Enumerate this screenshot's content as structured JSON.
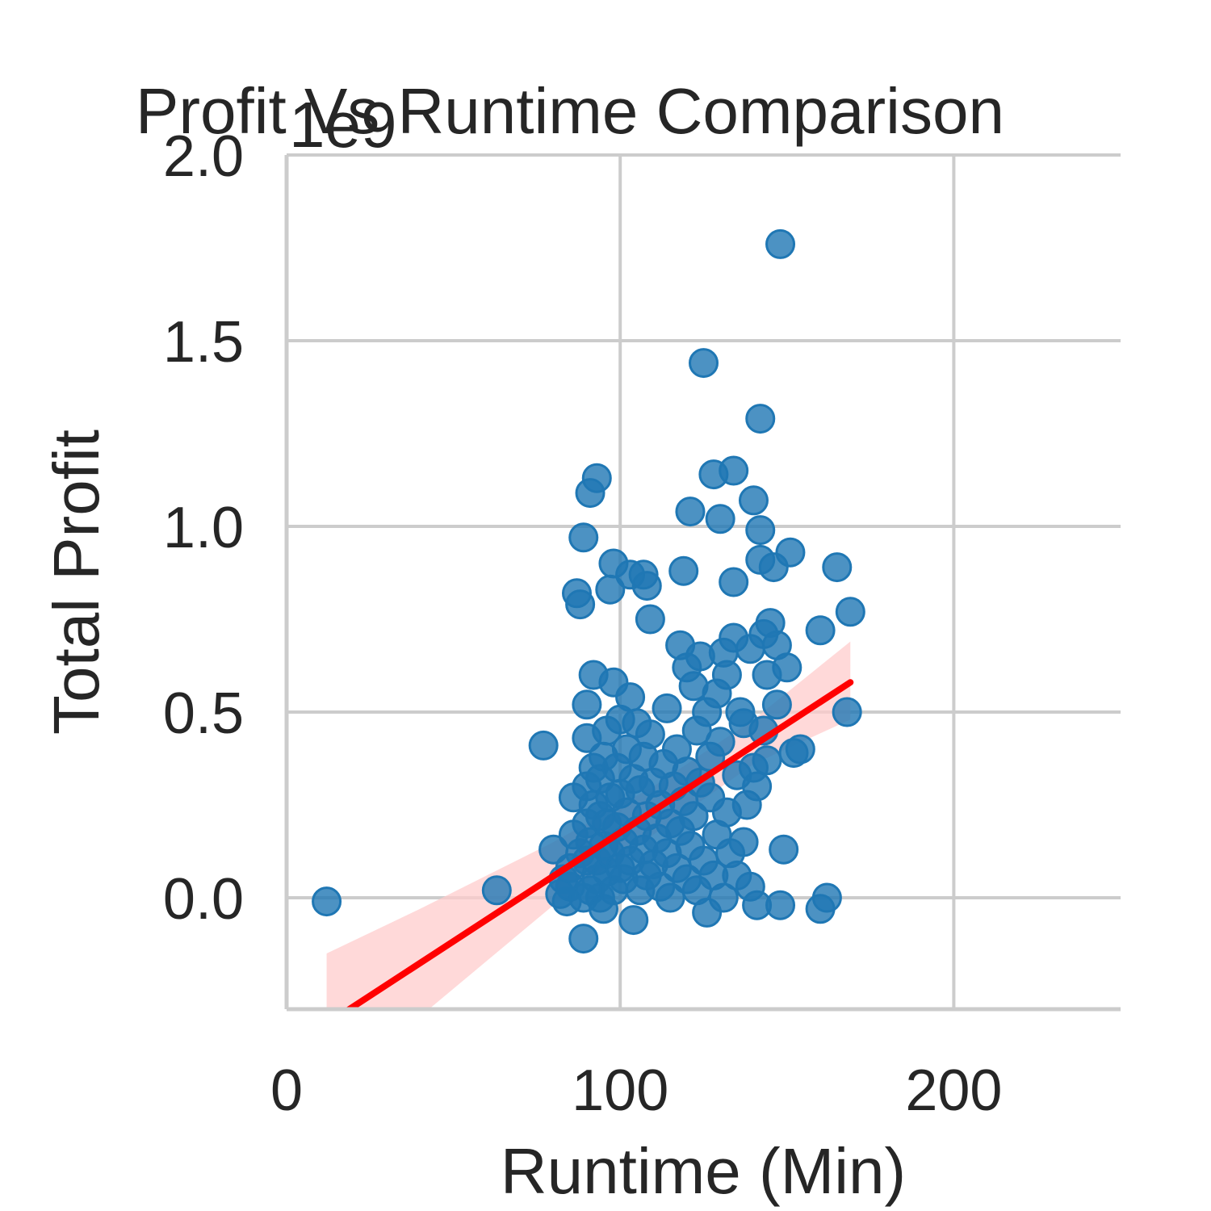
{
  "chart_data": {
    "type": "scatter",
    "title": "Profit Vs Runtime Comparison",
    "xlabel": "Runtime (Min)",
    "ylabel": "Total Profit",
    "y_offset_label": "1e9",
    "xlim": [
      0,
      250
    ],
    "ylim": [
      -0.3,
      2.0
    ],
    "x_ticks": [
      0,
      100,
      200
    ],
    "y_ticks": [
      0.0,
      0.5,
      1.0,
      1.5,
      2.0
    ],
    "x_tick_labels": [
      "0",
      "100",
      "200"
    ],
    "y_tick_labels": [
      "0.0",
      "0.5",
      "1.0",
      "1.5",
      "2.0"
    ],
    "grid": true,
    "point_color": "#1f77b4",
    "regression_color": "#ff0000",
    "ci_color": "#ffcccc",
    "regression": {
      "x": [
        12,
        169
      ],
      "y": [
        -0.34,
        0.58
      ]
    },
    "confidence_band": {
      "x": [
        12,
        40,
        80,
        110,
        140,
        169
      ],
      "lower": [
        -0.52,
        -0.32,
        -0.02,
        0.17,
        0.36,
        0.48
      ],
      "upper": [
        -0.15,
        -0.03,
        0.15,
        0.3,
        0.48,
        0.69
      ]
    },
    "points": [
      [
        12,
        -0.01
      ],
      [
        63,
        0.02
      ],
      [
        77,
        0.41
      ],
      [
        80,
        0.13
      ],
      [
        82,
        0.01
      ],
      [
        83,
        0.05
      ],
      [
        84,
        -0.01
      ],
      [
        85,
        0.03
      ],
      [
        85,
        0.08
      ],
      [
        86,
        0.17
      ],
      [
        86,
        0.27
      ],
      [
        87,
        0.82
      ],
      [
        88,
        0.79
      ],
      [
        88,
        0.12
      ],
      [
        89,
        -0.11
      ],
      [
        89,
        0.0
      ],
      [
        89,
        0.97
      ],
      [
        90,
        0.52
      ],
      [
        90,
        0.43
      ],
      [
        90,
        0.3
      ],
      [
        90,
        0.2
      ],
      [
        90,
        0.1
      ],
      [
        91,
        1.09
      ],
      [
        91,
        0.02
      ],
      [
        91,
        0.15
      ],
      [
        92,
        0.6
      ],
      [
        92,
        0.35
      ],
      [
        92,
        0.25
      ],
      [
        93,
        1.13
      ],
      [
        93,
        0.05
      ],
      [
        93,
        0.1
      ],
      [
        94,
        0.22
      ],
      [
        94,
        0.32
      ],
      [
        94,
        0.0
      ],
      [
        95,
        0.14
      ],
      [
        95,
        0.38
      ],
      [
        95,
        -0.03
      ],
      [
        96,
        0.2
      ],
      [
        96,
        0.45
      ],
      [
        96,
        0.07
      ],
      [
        97,
        0.83
      ],
      [
        97,
        0.27
      ],
      [
        97,
        0.12
      ],
      [
        98,
        0.58
      ],
      [
        98,
        0.9
      ],
      [
        98,
        0.02
      ],
      [
        99,
        0.35
      ],
      [
        99,
        0.19
      ],
      [
        100,
        0.48
      ],
      [
        100,
        0.08
      ],
      [
        100,
        0.28
      ],
      [
        101,
        0.15
      ],
      [
        101,
        0.05
      ],
      [
        102,
        0.4
      ],
      [
        102,
        0.23
      ],
      [
        103,
        0.87
      ],
      [
        103,
        0.54
      ],
      [
        103,
        0.1
      ],
      [
        104,
        0.32
      ],
      [
        104,
        -0.06
      ],
      [
        105,
        0.18
      ],
      [
        105,
        0.47
      ],
      [
        106,
        0.02
      ],
      [
        106,
        0.29
      ],
      [
        107,
        0.87
      ],
      [
        107,
        0.13
      ],
      [
        107,
        0.38
      ],
      [
        108,
        0.84
      ],
      [
        108,
        0.06
      ],
      [
        108,
        0.22
      ],
      [
        109,
        0.75
      ],
      [
        109,
        0.44
      ],
      [
        110,
        0.31
      ],
      [
        110,
        0.09
      ],
      [
        111,
        0.16
      ],
      [
        112,
        0.25
      ],
      [
        112,
        0.03
      ],
      [
        113,
        0.36
      ],
      [
        114,
        0.12
      ],
      [
        114,
        0.51
      ],
      [
        115,
        0.2
      ],
      [
        115,
        0.0
      ],
      [
        116,
        0.3
      ],
      [
        117,
        0.08
      ],
      [
        117,
        0.4
      ],
      [
        118,
        0.18
      ],
      [
        118,
        0.68
      ],
      [
        119,
        0.26
      ],
      [
        119,
        0.88
      ],
      [
        120,
        0.05
      ],
      [
        120,
        0.62
      ],
      [
        120,
        0.34
      ],
      [
        121,
        1.04
      ],
      [
        121,
        0.14
      ],
      [
        122,
        0.57
      ],
      [
        122,
        0.22
      ],
      [
        123,
        0.02
      ],
      [
        123,
        0.45
      ],
      [
        124,
        0.65
      ],
      [
        124,
        0.31
      ],
      [
        125,
        1.44
      ],
      [
        125,
        0.1
      ],
      [
        126,
        0.5
      ],
      [
        126,
        -0.04
      ],
      [
        127,
        0.27
      ],
      [
        127,
        0.38
      ],
      [
        128,
        1.14
      ],
      [
        128,
        0.06
      ],
      [
        129,
        0.55
      ],
      [
        129,
        0.17
      ],
      [
        130,
        1.02
      ],
      [
        130,
        0.42
      ],
      [
        131,
        0.66
      ],
      [
        131,
        0.0
      ],
      [
        132,
        0.23
      ],
      [
        132,
        0.6
      ],
      [
        133,
        0.12
      ],
      [
        134,
        1.15
      ],
      [
        134,
        0.85
      ],
      [
        134,
        0.7
      ],
      [
        135,
        0.33
      ],
      [
        135,
        0.06
      ],
      [
        136,
        0.5
      ],
      [
        137,
        0.47
      ],
      [
        137,
        0.15
      ],
      [
        138,
        0.25
      ],
      [
        139,
        0.67
      ],
      [
        139,
        0.03
      ],
      [
        140,
        0.35
      ],
      [
        140,
        1.07
      ],
      [
        141,
        0.3
      ],
      [
        141,
        -0.02
      ],
      [
        142,
        1.29
      ],
      [
        142,
        0.99
      ],
      [
        142,
        0.91
      ],
      [
        143,
        0.71
      ],
      [
        143,
        0.45
      ],
      [
        144,
        0.37
      ],
      [
        144,
        0.6
      ],
      [
        145,
        0.74
      ],
      [
        146,
        0.89
      ],
      [
        147,
        0.68
      ],
      [
        147,
        0.52
      ],
      [
        148,
        1.76
      ],
      [
        148,
        -0.02
      ],
      [
        149,
        0.13
      ],
      [
        150,
        0.62
      ],
      [
        151,
        0.93
      ],
      [
        152,
        0.39
      ],
      [
        154,
        0.4
      ],
      [
        160,
        0.72
      ],
      [
        160,
        -0.03
      ],
      [
        162,
        0.0
      ],
      [
        165,
        0.89
      ],
      [
        168,
        0.5
      ],
      [
        169,
        0.77
      ]
    ]
  }
}
